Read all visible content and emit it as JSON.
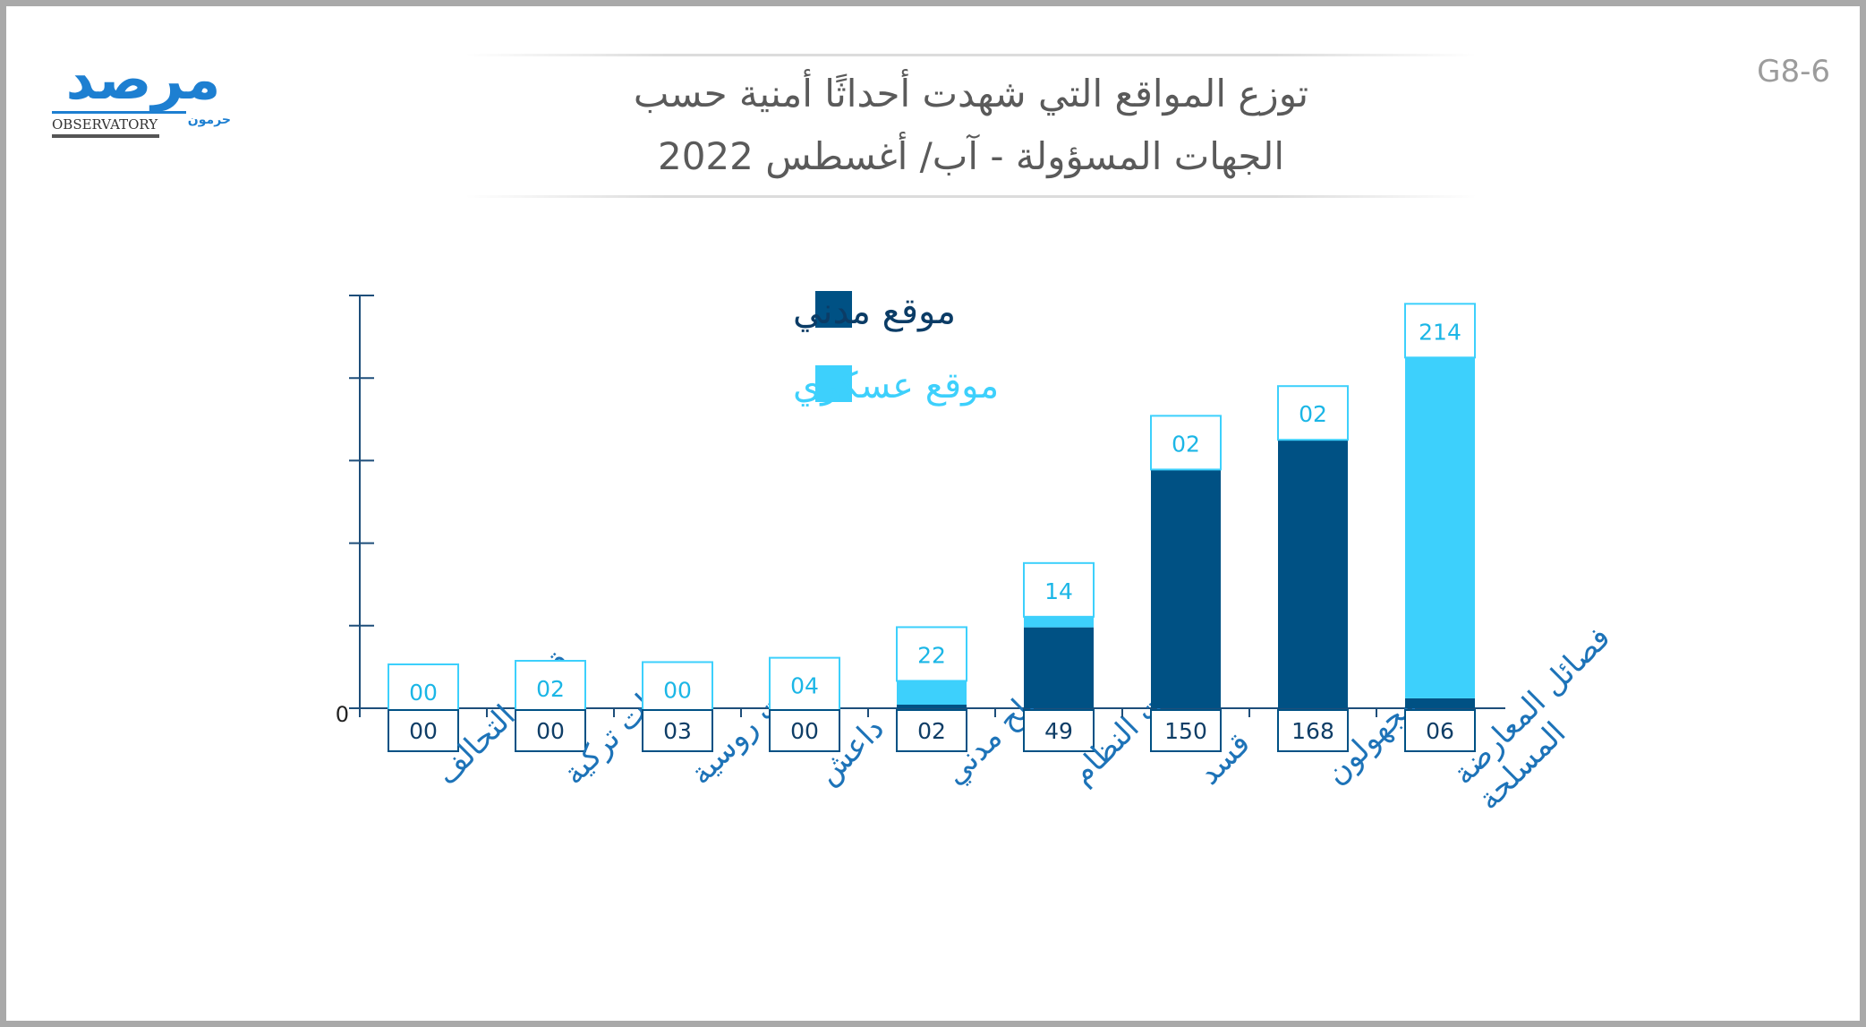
{
  "figure_code": "G8-6",
  "logo": {
    "arabic_text": "مرصد",
    "latin_text": "OBSERVATORY",
    "sub_text": "حرمون"
  },
  "title_lines": [
    "توزع المواقع التي شهدت أحداثًا أمنية حسب",
    "الجهات المسؤولة - آب/ أغسطس 2022"
  ],
  "colors": {
    "civilian": "#005184",
    "military": "#3dd0fc",
    "axis": "#1e4e7a",
    "title": "#5a5a5a"
  },
  "chart_data": {
    "type": "bar",
    "stacked": true,
    "categories": [
      "قوات التحالف",
      "قوات تركية",
      "قوات روسية",
      "داعش",
      "مسلح مدني",
      "قوات النظام",
      "قسد",
      "مجهولون",
      "فصائل المعارضة المسلحة"
    ],
    "series": [
      {
        "name": "موقع مدني",
        "color": "#005184",
        "values": [
          0,
          0,
          3,
          0,
          2,
          49,
          150,
          168,
          6
        ],
        "labels": [
          "00",
          "00",
          "03",
          "00",
          "02",
          "49",
          "150",
          "168",
          "06"
        ]
      },
      {
        "name": "موقع عسكري",
        "color": "#3dd0fc",
        "values": [
          0,
          2,
          0,
          4,
          22,
          14,
          2,
          2,
          214
        ],
        "labels": [
          "00",
          "02",
          "00",
          "04",
          "22",
          "14",
          "02",
          "02",
          "214"
        ]
      }
    ],
    "y_tick_labels": [
      "0"
    ],
    "legend_position": "top-left",
    "grid": false
  }
}
